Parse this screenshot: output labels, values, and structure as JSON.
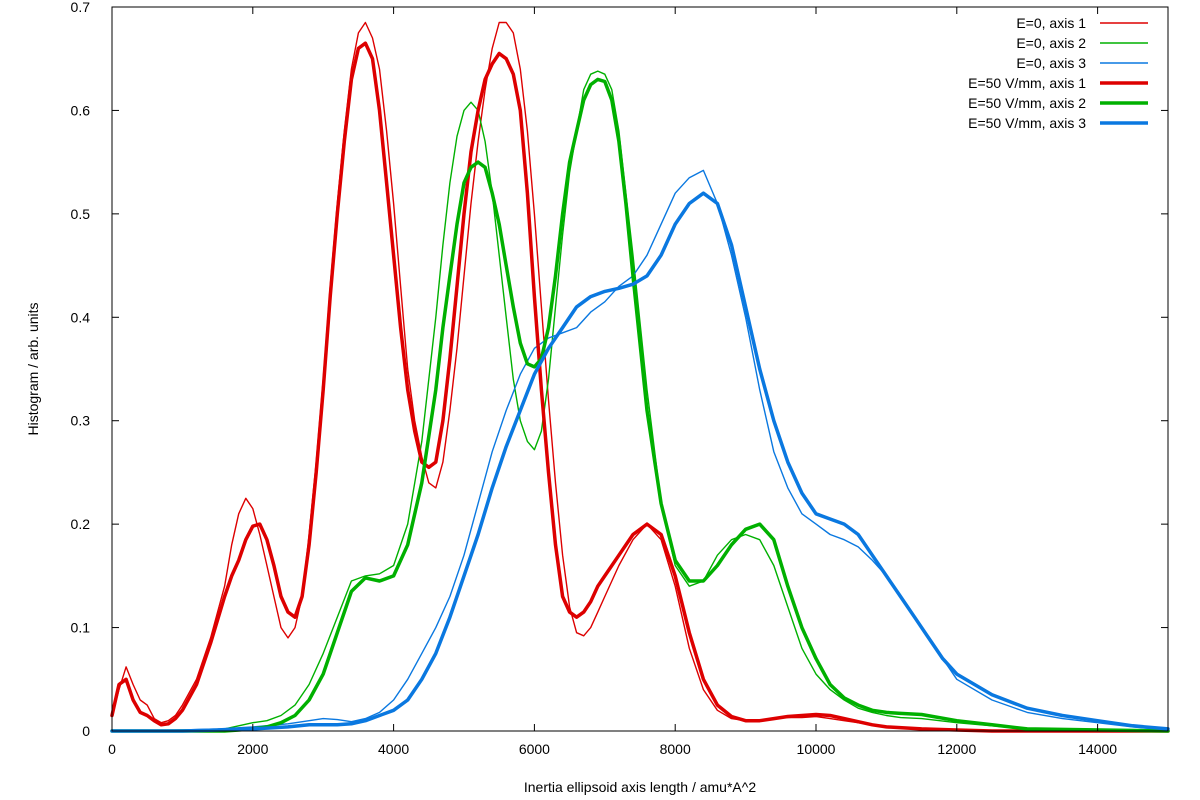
{
  "chart_data": {
    "type": "line",
    "title": "",
    "xlabel": "Inertia ellipsoid axis length / amu*A^2",
    "ylabel": "Histogram / arb. units",
    "xlim": [
      0,
      15000
    ],
    "ylim": [
      0,
      0.7
    ],
    "x_ticks": [
      "0",
      "2000",
      "4000",
      "6000",
      "8000",
      "10000",
      "12000",
      "14000"
    ],
    "y_ticks": [
      "0",
      "0.1",
      "0.2",
      "0.3",
      "0.4",
      "0.5",
      "0.6",
      "0.7"
    ],
    "grid": false,
    "legend_position": "top-right",
    "series": [
      {
        "name": "E=0, axis 1",
        "color": "#dd0000",
        "style": "thin",
        "x": [
          0,
          100,
          200,
          300,
          400,
          500,
          600,
          700,
          800,
          900,
          1000,
          1200,
          1400,
          1600,
          1700,
          1800,
          1900,
          2000,
          2100,
          2200,
          2300,
          2400,
          2500,
          2600,
          2700,
          2800,
          2900,
          3000,
          3100,
          3200,
          3300,
          3400,
          3500,
          3600,
          3700,
          3800,
          3900,
          4000,
          4100,
          4200,
          4300,
          4400,
          4500,
          4600,
          4700,
          4800,
          4900,
          5000,
          5100,
          5200,
          5300,
          5400,
          5500,
          5600,
          5700,
          5800,
          5900,
          6000,
          6100,
          6200,
          6300,
          6400,
          6500,
          6600,
          6700,
          6800,
          6900,
          7000,
          7200,
          7400,
          7600,
          7800,
          8000,
          8200,
          8400,
          8600,
          8800,
          9000,
          9200,
          9400,
          9600,
          9800,
          10000,
          10200,
          10400,
          10600,
          10800,
          11000,
          11500,
          12000,
          12500,
          13000,
          15000
        ],
        "y": [
          0.015,
          0.04,
          0.062,
          0.045,
          0.03,
          0.025,
          0.012,
          0.008,
          0.01,
          0.015,
          0.025,
          0.05,
          0.09,
          0.14,
          0.18,
          0.21,
          0.225,
          0.215,
          0.19,
          0.16,
          0.13,
          0.1,
          0.09,
          0.1,
          0.13,
          0.19,
          0.26,
          0.34,
          0.43,
          0.51,
          0.58,
          0.64,
          0.675,
          0.685,
          0.67,
          0.64,
          0.58,
          0.51,
          0.43,
          0.35,
          0.3,
          0.265,
          0.24,
          0.235,
          0.26,
          0.31,
          0.37,
          0.44,
          0.51,
          0.57,
          0.62,
          0.66,
          0.685,
          0.685,
          0.675,
          0.64,
          0.58,
          0.5,
          0.41,
          0.32,
          0.24,
          0.17,
          0.12,
          0.095,
          0.092,
          0.1,
          0.115,
          0.13,
          0.16,
          0.185,
          0.2,
          0.185,
          0.14,
          0.08,
          0.04,
          0.02,
          0.012,
          0.01,
          0.01,
          0.012,
          0.013,
          0.013,
          0.014,
          0.012,
          0.01,
          0.008,
          0.006,
          0.004,
          0.002,
          0.001,
          0,
          0,
          0
        ]
      },
      {
        "name": "E=0, axis 2",
        "color": "#00b000",
        "style": "thin",
        "x": [
          0,
          800,
          1000,
          1200,
          1400,
          1600,
          1800,
          2000,
          2200,
          2400,
          2600,
          2800,
          3000,
          3200,
          3400,
          3600,
          3800,
          4000,
          4200,
          4400,
          4600,
          4700,
          4800,
          4900,
          5000,
          5100,
          5200,
          5300,
          5400,
          5500,
          5600,
          5700,
          5800,
          5900,
          6000,
          6100,
          6200,
          6300,
          6400,
          6500,
          6600,
          6700,
          6800,
          6900,
          7000,
          7100,
          7200,
          7300,
          7400,
          7600,
          7800,
          8000,
          8200,
          8400,
          8600,
          8800,
          9000,
          9200,
          9400,
          9600,
          9800,
          10000,
          10200,
          10400,
          10600,
          10800,
          11000,
          11200,
          11500,
          12000,
          12500,
          13000,
          15000
        ],
        "y": [
          0,
          0,
          0,
          0,
          0,
          0.002,
          0.005,
          0.008,
          0.01,
          0.015,
          0.025,
          0.045,
          0.075,
          0.11,
          0.145,
          0.15,
          0.152,
          0.16,
          0.2,
          0.28,
          0.4,
          0.47,
          0.53,
          0.575,
          0.6,
          0.608,
          0.6,
          0.57,
          0.52,
          0.46,
          0.4,
          0.34,
          0.3,
          0.28,
          0.272,
          0.29,
          0.34,
          0.41,
          0.48,
          0.54,
          0.58,
          0.62,
          0.635,
          0.638,
          0.635,
          0.62,
          0.58,
          0.52,
          0.46,
          0.33,
          0.22,
          0.16,
          0.14,
          0.145,
          0.17,
          0.185,
          0.19,
          0.185,
          0.16,
          0.12,
          0.08,
          0.055,
          0.04,
          0.03,
          0.022,
          0.018,
          0.015,
          0.013,
          0.012,
          0.008,
          0.005,
          0.002,
          0
        ]
      },
      {
        "name": "E=0, axis 3",
        "color": "#0a78e0",
        "style": "thin",
        "x": [
          0,
          1000,
          1500,
          2000,
          2500,
          2800,
          3000,
          3200,
          3400,
          3600,
          3800,
          4000,
          4200,
          4400,
          4600,
          4800,
          5000,
          5200,
          5400,
          5600,
          5800,
          6000,
          6200,
          6400,
          6600,
          6800,
          7000,
          7200,
          7400,
          7600,
          7800,
          8000,
          8200,
          8400,
          8600,
          8800,
          9000,
          9200,
          9400,
          9600,
          9800,
          10000,
          10200,
          10400,
          10600,
          10800,
          11000,
          11200,
          11400,
          11600,
          11800,
          12000,
          12500,
          13000,
          13500,
          14000,
          14500,
          15000
        ],
        "y": [
          0,
          0.001,
          0.002,
          0.004,
          0.007,
          0.01,
          0.012,
          0.011,
          0.009,
          0.012,
          0.018,
          0.03,
          0.05,
          0.075,
          0.1,
          0.13,
          0.17,
          0.22,
          0.27,
          0.31,
          0.345,
          0.37,
          0.38,
          0.385,
          0.39,
          0.405,
          0.415,
          0.43,
          0.44,
          0.46,
          0.49,
          0.52,
          0.535,
          0.542,
          0.51,
          0.46,
          0.4,
          0.33,
          0.27,
          0.235,
          0.21,
          0.2,
          0.19,
          0.185,
          0.178,
          0.165,
          0.15,
          0.13,
          0.11,
          0.09,
          0.07,
          0.05,
          0.03,
          0.018,
          0.012,
          0.008,
          0.004,
          0.001
        ]
      },
      {
        "name": "E=50 V/mm, axis 1",
        "color": "#dd0000",
        "style": "thick",
        "x": [
          0,
          100,
          200,
          300,
          400,
          500,
          600,
          700,
          800,
          900,
          1000,
          1200,
          1400,
          1600,
          1700,
          1800,
          1900,
          2000,
          2100,
          2200,
          2300,
          2400,
          2500,
          2600,
          2700,
          2800,
          2900,
          3000,
          3100,
          3200,
          3300,
          3400,
          3500,
          3600,
          3700,
          3800,
          3900,
          4000,
          4100,
          4200,
          4300,
          4400,
          4500,
          4600,
          4700,
          4800,
          4900,
          5000,
          5100,
          5200,
          5300,
          5400,
          5500,
          5600,
          5700,
          5800,
          5900,
          6000,
          6100,
          6200,
          6300,
          6400,
          6500,
          6600,
          6700,
          6800,
          6900,
          7000,
          7200,
          7400,
          7600,
          7800,
          8000,
          8200,
          8400,
          8600,
          8800,
          9000,
          9200,
          9400,
          9600,
          9800,
          10000,
          10200,
          10400,
          10600,
          10800,
          11000,
          11500,
          12000,
          12500,
          13000,
          15000
        ],
        "y": [
          0.015,
          0.045,
          0.05,
          0.03,
          0.018,
          0.015,
          0.01,
          0.006,
          0.007,
          0.012,
          0.02,
          0.045,
          0.085,
          0.13,
          0.15,
          0.165,
          0.185,
          0.198,
          0.2,
          0.185,
          0.16,
          0.13,
          0.115,
          0.11,
          0.13,
          0.18,
          0.25,
          0.33,
          0.42,
          0.5,
          0.57,
          0.63,
          0.66,
          0.665,
          0.65,
          0.6,
          0.53,
          0.46,
          0.39,
          0.33,
          0.29,
          0.26,
          0.255,
          0.26,
          0.3,
          0.36,
          0.43,
          0.5,
          0.56,
          0.6,
          0.63,
          0.645,
          0.655,
          0.65,
          0.635,
          0.6,
          0.52,
          0.42,
          0.33,
          0.25,
          0.18,
          0.13,
          0.115,
          0.11,
          0.115,
          0.125,
          0.14,
          0.15,
          0.17,
          0.19,
          0.2,
          0.19,
          0.15,
          0.095,
          0.05,
          0.025,
          0.014,
          0.01,
          0.01,
          0.012,
          0.014,
          0.015,
          0.016,
          0.015,
          0.012,
          0.009,
          0.006,
          0.004,
          0.002,
          0.001,
          0,
          0,
          0
        ]
      },
      {
        "name": "E=50 V/mm, axis 2",
        "color": "#00b000",
        "style": "thick",
        "x": [
          0,
          800,
          1000,
          1200,
          1400,
          1600,
          1800,
          2000,
          2200,
          2400,
          2600,
          2800,
          3000,
          3200,
          3400,
          3600,
          3800,
          4000,
          4200,
          4400,
          4600,
          4700,
          4800,
          4900,
          5000,
          5100,
          5200,
          5300,
          5400,
          5500,
          5600,
          5700,
          5800,
          5900,
          6000,
          6100,
          6200,
          6300,
          6400,
          6500,
          6600,
          6700,
          6800,
          6900,
          7000,
          7100,
          7200,
          7300,
          7400,
          7600,
          7800,
          8000,
          8200,
          8400,
          8600,
          8800,
          9000,
          9200,
          9400,
          9600,
          9800,
          10000,
          10200,
          10400,
          10600,
          10800,
          11000,
          11200,
          11500,
          12000,
          12500,
          13000,
          15000
        ],
        "y": [
          0,
          0,
          0,
          0,
          0,
          0,
          0.001,
          0.002,
          0.004,
          0.008,
          0.015,
          0.03,
          0.055,
          0.095,
          0.135,
          0.148,
          0.145,
          0.15,
          0.18,
          0.24,
          0.33,
          0.39,
          0.44,
          0.49,
          0.53,
          0.545,
          0.55,
          0.545,
          0.52,
          0.49,
          0.45,
          0.41,
          0.375,
          0.355,
          0.352,
          0.36,
          0.39,
          0.44,
          0.5,
          0.55,
          0.58,
          0.61,
          0.625,
          0.63,
          0.628,
          0.61,
          0.57,
          0.51,
          0.44,
          0.31,
          0.22,
          0.165,
          0.145,
          0.145,
          0.16,
          0.18,
          0.195,
          0.2,
          0.185,
          0.14,
          0.1,
          0.07,
          0.045,
          0.032,
          0.025,
          0.02,
          0.018,
          0.017,
          0.016,
          0.01,
          0.006,
          0.002,
          0
        ]
      },
      {
        "name": "E=50 V/mm, axis 3",
        "color": "#0a78e0",
        "style": "thick",
        "x": [
          0,
          1000,
          1500,
          2000,
          2500,
          2800,
          3000,
          3200,
          3400,
          3600,
          3800,
          4000,
          4200,
          4400,
          4600,
          4800,
          5000,
          5200,
          5400,
          5600,
          5800,
          6000,
          6200,
          6400,
          6600,
          6800,
          7000,
          7200,
          7400,
          7600,
          7800,
          8000,
          8200,
          8400,
          8600,
          8800,
          9000,
          9200,
          9400,
          9600,
          9800,
          10000,
          10200,
          10400,
          10600,
          10800,
          11000,
          11200,
          11400,
          11600,
          11800,
          12000,
          12500,
          13000,
          13500,
          14000,
          14500,
          15000
        ],
        "y": [
          0,
          0,
          0.001,
          0.002,
          0.004,
          0.006,
          0.006,
          0.006,
          0.007,
          0.01,
          0.015,
          0.02,
          0.03,
          0.05,
          0.075,
          0.11,
          0.15,
          0.19,
          0.235,
          0.275,
          0.31,
          0.345,
          0.37,
          0.39,
          0.41,
          0.42,
          0.425,
          0.428,
          0.432,
          0.44,
          0.46,
          0.49,
          0.51,
          0.52,
          0.51,
          0.47,
          0.41,
          0.35,
          0.3,
          0.26,
          0.23,
          0.21,
          0.205,
          0.2,
          0.19,
          0.17,
          0.15,
          0.13,
          0.11,
          0.09,
          0.07,
          0.055,
          0.035,
          0.022,
          0.015,
          0.01,
          0.005,
          0.002
        ]
      }
    ]
  }
}
